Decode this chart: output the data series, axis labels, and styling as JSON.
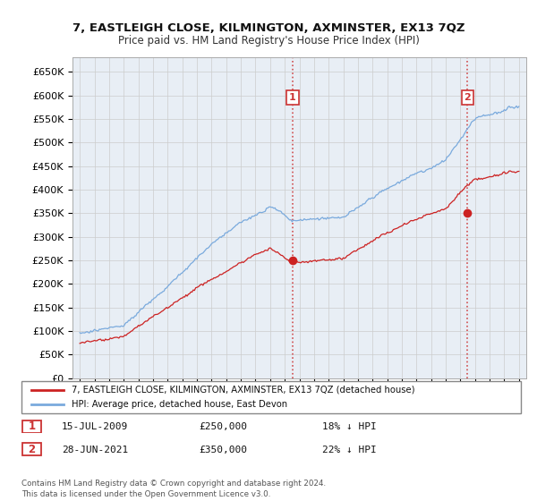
{
  "title": "7, EASTLEIGH CLOSE, KILMINGTON, AXMINSTER, EX13 7QZ",
  "subtitle": "Price paid vs. HM Land Registry's House Price Index (HPI)",
  "bg_color": "#ffffff",
  "grid_color": "#cccccc",
  "plot_bg": "#e8eef5",
  "hpi_color": "#7aaadd",
  "price_color": "#cc2222",
  "dashed_color": "#cc3333",
  "yticks": [
    0,
    50000,
    100000,
    150000,
    200000,
    250000,
    300000,
    350000,
    400000,
    450000,
    500000,
    550000,
    600000,
    650000
  ],
  "xmin": 1994.5,
  "xmax": 2025.5,
  "ymin": 0,
  "ymax": 680000,
  "sale1_year": 2009.54,
  "sale1_price": 250000,
  "sale1_label": "1",
  "sale2_year": 2021.49,
  "sale2_price": 350000,
  "sale2_label": "2",
  "legend_line1": "7, EASTLEIGH CLOSE, KILMINGTON, AXMINSTER, EX13 7QZ (detached house)",
  "legend_line2": "HPI: Average price, detached house, East Devon",
  "annotation1_date": "15-JUL-2009",
  "annotation1_price": "£250,000",
  "annotation1_hpi": "18% ↓ HPI",
  "annotation2_date": "28-JUN-2021",
  "annotation2_price": "£350,000",
  "annotation2_hpi": "22% ↓ HPI",
  "footer": "Contains HM Land Registry data © Crown copyright and database right 2024.\nThis data is licensed under the Open Government Licence v3.0."
}
